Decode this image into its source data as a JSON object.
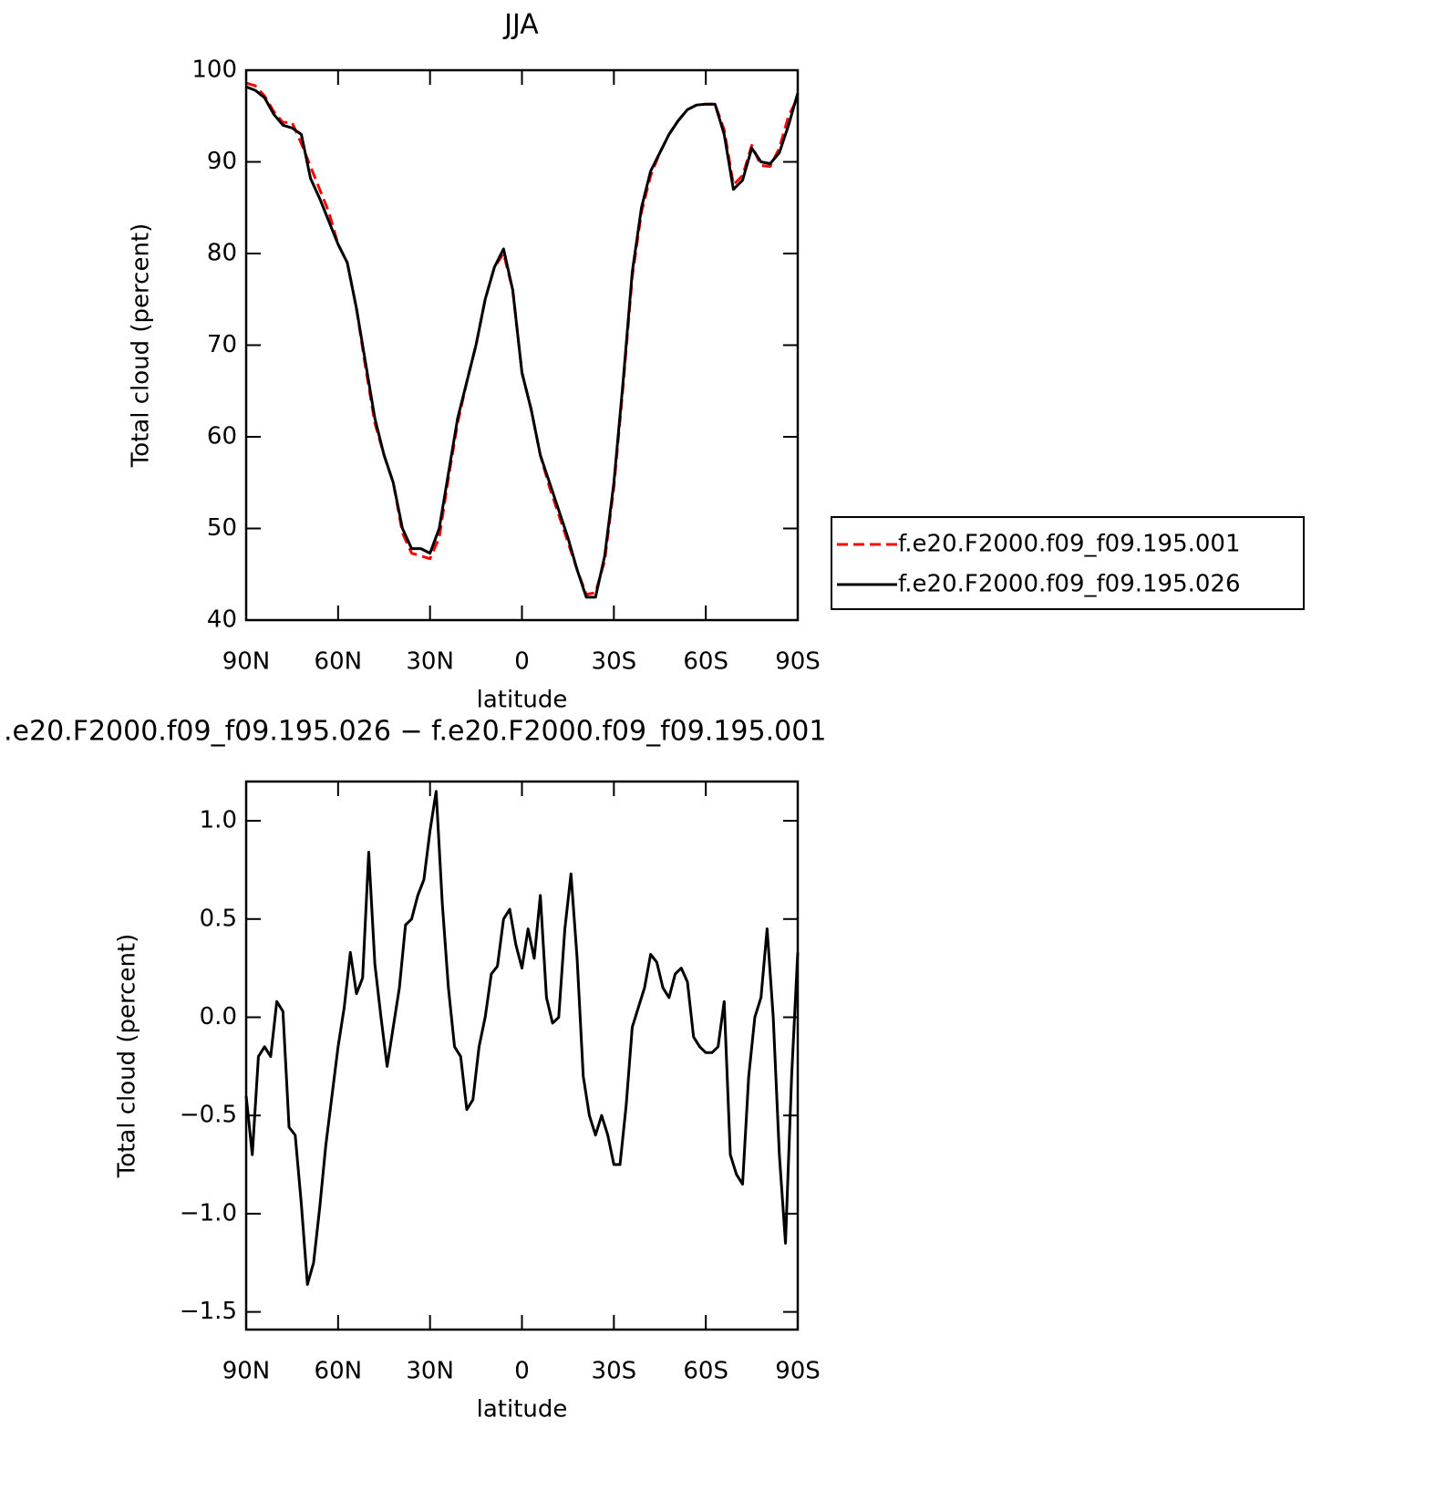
{
  "chart_data": [
    {
      "type": "line",
      "title": "JJA",
      "xlabel": "latitude",
      "ylabel": "Total cloud (percent)",
      "x": [
        90,
        87,
        84,
        81,
        78,
        75,
        72,
        69,
        66,
        63,
        60,
        57,
        54,
        51,
        48,
        45,
        42,
        39,
        36,
        33,
        30,
        27,
        24,
        21,
        18,
        15,
        12,
        9,
        6,
        3,
        0,
        -3,
        -6,
        -9,
        -12,
        -15,
        -18,
        -21,
        -24,
        -27,
        -30,
        -33,
        -36,
        -39,
        -42,
        -45,
        -48,
        -51,
        -54,
        -57,
        -60,
        -63,
        -66,
        -69,
        -72,
        -75,
        -78,
        -81,
        -84,
        -87,
        -90
      ],
      "series": [
        {
          "name": "f.e20.F2000.f09_f09.195.001",
          "color": "#ff0000",
          "dashed": true,
          "values": [
            98.6,
            98.3,
            97.2,
            95.5,
            94.3,
            94.3,
            92.0,
            89.5,
            87.0,
            84.5,
            81.0,
            79.0,
            74.0,
            67.5,
            61.5,
            58.0,
            55.0,
            49.5,
            47.3,
            47.0,
            46.7,
            49.0,
            55.5,
            61.5,
            66.0,
            70.0,
            75.0,
            78.5,
            80.0,
            76.0,
            67.0,
            63.0,
            58.0,
            54.5,
            51.5,
            48.5,
            45.5,
            42.8,
            43.0,
            46.5,
            54.5,
            65.5,
            77.5,
            84.5,
            88.5,
            91.0,
            93.0,
            94.5,
            95.7,
            96.2,
            96.3,
            96.3,
            93.5,
            87.5,
            88.5,
            91.8,
            89.6,
            89.5,
            91.5,
            95.0,
            97.0
          ]
        },
        {
          "name": "f.e20.F2000.f09_f09.195.026",
          "color": "#000000",
          "dashed": false,
          "values": [
            98.2,
            97.8,
            97.0,
            95.2,
            94.0,
            93.7,
            93.0,
            88.2,
            86.0,
            83.5,
            81.0,
            79.0,
            74.0,
            68.0,
            62.0,
            58.0,
            55.0,
            50.0,
            47.8,
            47.8,
            47.3,
            50.0,
            56.0,
            62.0,
            66.0,
            70.0,
            75.0,
            78.5,
            80.5,
            76.0,
            67.0,
            63.0,
            58.0,
            55.0,
            52.0,
            49.0,
            45.5,
            42.5,
            42.5,
            47.0,
            55.0,
            66.0,
            78.0,
            85.0,
            89.0,
            91.0,
            93.0,
            94.5,
            95.7,
            96.2,
            96.3,
            96.3,
            93.0,
            87.0,
            88.0,
            91.5,
            90.0,
            89.8,
            91.0,
            94.0,
            97.5
          ]
        }
      ],
      "xlim": [
        90,
        -90
      ],
      "xticks": [
        {
          "value": 90,
          "label": "90N"
        },
        {
          "value": 60,
          "label": "60N"
        },
        {
          "value": 30,
          "label": "30N"
        },
        0,
        {
          "value": -30,
          "label": "30S"
        },
        {
          "value": -60,
          "label": "60S"
        },
        {
          "value": -90,
          "label": "90S"
        }
      ],
      "ylim": [
        40,
        100
      ],
      "yticks": [
        40,
        50,
        60,
        70,
        80,
        90,
        100
      ],
      "legend": "right",
      "grid": false
    },
    {
      "type": "line",
      "title": ".e20.F2000.f09_f09.195.026 − f.e20.F2000.f09_f09.195.001",
      "xlabel": "latitude",
      "ylabel": "Total cloud (percent)",
      "x": [
        90,
        88,
        86,
        84,
        82,
        80,
        78,
        76,
        74,
        72,
        70,
        68,
        66,
        64,
        62,
        60,
        58,
        56,
        54,
        52,
        50,
        48,
        46,
        44,
        42,
        40,
        38,
        36,
        34,
        32,
        30,
        28,
        26,
        24,
        22,
        20,
        18,
        16,
        14,
        12,
        10,
        8,
        6,
        4,
        2,
        0,
        -2,
        -4,
        -6,
        -8,
        -10,
        -12,
        -14,
        -16,
        -18,
        -20,
        -22,
        -24,
        -26,
        -28,
        -30,
        -32,
        -34,
        -36,
        -38,
        -40,
        -42,
        -44,
        -46,
        -48,
        -50,
        -52,
        -54,
        -56,
        -58,
        -60,
        -62,
        -64,
        -66,
        -68,
        -70,
        -72,
        -74,
        -76,
        -78,
        -80,
        -82,
        -84,
        -86,
        -88,
        -90
      ],
      "series": [
        {
          "name": null,
          "color": "#000000",
          "dashed": false,
          "values": [
            -0.4,
            -0.7,
            -0.2,
            -0.15,
            -0.2,
            0.08,
            0.03,
            -0.56,
            -0.6,
            -0.95,
            -1.36,
            -1.25,
            -0.97,
            -0.65,
            -0.4,
            -0.15,
            0.05,
            0.33,
            0.12,
            0.2,
            0.84,
            0.27,
            0.0,
            -0.25,
            -0.05,
            0.15,
            0.47,
            0.5,
            0.62,
            0.7,
            0.95,
            1.15,
            0.58,
            0.15,
            -0.15,
            -0.2,
            -0.47,
            -0.42,
            -0.15,
            0.0,
            0.22,
            0.26,
            0.5,
            0.55,
            0.37,
            0.25,
            0.45,
            0.3,
            0.62,
            0.1,
            -0.03,
            0.0,
            0.45,
            0.73,
            0.3,
            -0.3,
            -0.5,
            -0.6,
            -0.5,
            -0.6,
            -0.75,
            -0.75,
            -0.45,
            -0.05,
            0.05,
            0.15,
            0.32,
            0.28,
            0.15,
            0.1,
            0.22,
            0.25,
            0.18,
            -0.1,
            -0.15,
            -0.18,
            -0.18,
            -0.15,
            0.08,
            -0.7,
            -0.8,
            -0.85,
            -0.3,
            0.0,
            0.1,
            0.45,
            0.0,
            -0.7,
            -1.15,
            -0.3,
            0.33
          ]
        }
      ],
      "xlim": [
        90,
        -90
      ],
      "xticks": [
        {
          "value": 90,
          "label": "90N"
        },
        {
          "value": 60,
          "label": "60N"
        },
        {
          "value": 30,
          "label": "30N"
        },
        0,
        {
          "value": -30,
          "label": "30S"
        },
        {
          "value": -60,
          "label": "60S"
        },
        {
          "value": -90,
          "label": "90S"
        }
      ],
      "ylim": [
        -1.59,
        1.2
      ],
      "yticks": [
        {
          "value": -1.5,
          "label": "−1.5"
        },
        {
          "value": -1,
          "label": "−1.0"
        },
        {
          "value": -0.5,
          "label": "−0.5"
        },
        {
          "value": 0,
          "label": "0.0"
        },
        0.5,
        {
          "value": 1,
          "label": "1.0"
        }
      ],
      "legend": null,
      "grid": false
    }
  ]
}
